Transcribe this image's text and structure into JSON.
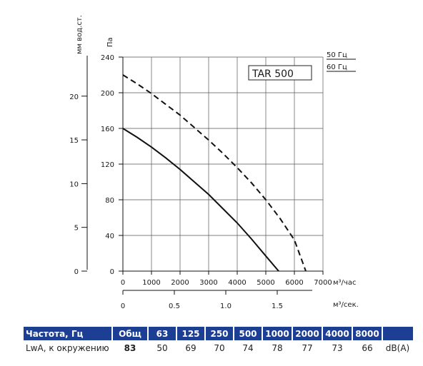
{
  "chart_data": {
    "type": "line",
    "model_label": "TAR 500",
    "y_left_outer_label": "мм вод.ст.",
    "y_left_outer_ticks": [
      0,
      5,
      10,
      15,
      20
    ],
    "y_label": "Па",
    "y_ticks": [
      0,
      40,
      80,
      120,
      160,
      200,
      240
    ],
    "ylim": [
      0,
      240
    ],
    "x_label": "м³/час",
    "x_ticks": [
      0,
      1000,
      2000,
      3000,
      4000,
      5000,
      6000,
      7000
    ],
    "xlim": [
      0,
      7000
    ],
    "x2_label": "м³/сек.",
    "x2_ticks": [
      0,
      0.5,
      1.0,
      1.5
    ],
    "grid": true,
    "legend_placement": "top-right",
    "series": [
      {
        "name": "50 Гц",
        "style": "solid",
        "x": [
          0,
          500,
          1000,
          1500,
          2000,
          2500,
          3000,
          3500,
          4000,
          4500,
          5000,
          5450
        ],
        "y": [
          160,
          150,
          139,
          127,
          114,
          100,
          86,
          70,
          54,
          36,
          17,
          0
        ]
      },
      {
        "name": "60 Гц",
        "style": "dashed",
        "x": [
          0,
          500,
          1000,
          1500,
          2000,
          2500,
          3000,
          3500,
          4000,
          4500,
          5000,
          5500,
          6000,
          6400
        ],
        "y": [
          220,
          210,
          199,
          187,
          175,
          161,
          147,
          132,
          116,
          99,
          80,
          59,
          35,
          0
        ]
      }
    ]
  },
  "spectrum_table": {
    "header": [
      "Частота, Гц",
      "Общ",
      "63",
      "125",
      "250",
      "500",
      "1000",
      "2000",
      "4000",
      "8000",
      ""
    ],
    "row": [
      "LwA, к окружению",
      "83",
      "50",
      "69",
      "70",
      "74",
      "78",
      "77",
      "73",
      "66",
      "dB(A)"
    ]
  }
}
